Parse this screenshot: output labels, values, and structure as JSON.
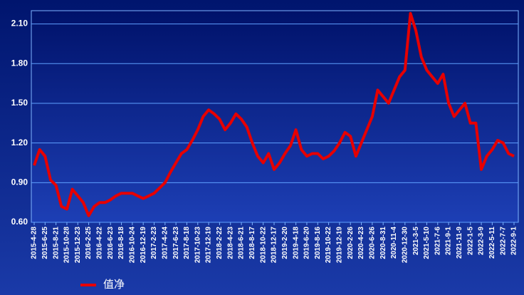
{
  "chart_data": {
    "type": "line",
    "categories": [
      "2015-4-28",
      null,
      "2015-6-25",
      null,
      "2015-8-21",
      null,
      "2015-10-28",
      null,
      "2015-12-23",
      null,
      "2016-2-25",
      null,
      "2016-4-22",
      null,
      "2016-6-23",
      null,
      "2016-8-18",
      null,
      "2016-10-24",
      null,
      "2016-12-19",
      null,
      "2017-2-23",
      null,
      "2017-4-24",
      null,
      "2017-6-23",
      null,
      "2017-8-18",
      null,
      "2017-10-23",
      null,
      "2017-12-19",
      null,
      "2018-2-22",
      null,
      "2018-4-23",
      null,
      "2018-6-21",
      null,
      "2018-8-17",
      null,
      "2018-10-22",
      null,
      "2018-12-17",
      null,
      "2019-2-20",
      null,
      "2019-4-18",
      null,
      "2019-6-20",
      null,
      "2019-8-16",
      null,
      "2019-10-22",
      null,
      "2019-12-19",
      null,
      "2020-2-26",
      null,
      "2020-4-23",
      null,
      "2020-6-26",
      null,
      "2020-8-31",
      null,
      "2020-11-4",
      null,
      "2020-12-30",
      null,
      "2021-3-5",
      null,
      "2021-5-10",
      null,
      "2021-7-6",
      null,
      "2021-9-1",
      null,
      "2021-11-9",
      null,
      "2022-1-5",
      null,
      "2022-3-9",
      null,
      "2022-5-11",
      null,
      "2022-7-7",
      null,
      "2022-9-1"
    ],
    "series": [
      {
        "name": "值净",
        "color": "#e60000",
        "values": [
          1.03,
          1.15,
          1.1,
          0.92,
          0.88,
          0.72,
          0.7,
          0.85,
          0.8,
          0.75,
          0.65,
          0.72,
          0.75,
          0.75,
          0.77,
          0.8,
          0.82,
          0.82,
          0.82,
          0.8,
          0.78,
          0.8,
          0.82,
          0.86,
          0.9,
          0.98,
          1.05,
          1.12,
          1.15,
          1.22,
          1.3,
          1.4,
          1.45,
          1.42,
          1.38,
          1.3,
          1.35,
          1.42,
          1.38,
          1.32,
          1.2,
          1.1,
          1.05,
          1.12,
          1.0,
          1.05,
          1.12,
          1.18,
          1.3,
          1.15,
          1.1,
          1.12,
          1.12,
          1.08,
          1.1,
          1.14,
          1.2,
          1.28,
          1.25,
          1.1,
          1.2,
          1.3,
          1.4,
          1.6,
          1.55,
          1.5,
          1.6,
          1.7,
          1.75,
          2.18,
          2.05,
          1.85,
          1.75,
          1.7,
          1.65,
          1.72,
          1.5,
          1.4,
          1.45,
          1.5,
          1.35,
          1.35,
          1.0,
          1.1,
          1.15,
          1.22,
          1.2,
          1.12,
          1.1
        ]
      }
    ],
    "ylim": [
      0.6,
      2.2
    ],
    "yticks": [
      {
        "value": 0.6,
        "label": "0.60"
      },
      {
        "value": 0.9,
        "label": "0.90"
      },
      {
        "value": 1.2,
        "label": "1.20"
      },
      {
        "value": 1.5,
        "label": "1.50"
      },
      {
        "value": 1.8,
        "label": "1.80"
      },
      {
        "value": 2.1,
        "label": "2.10"
      }
    ],
    "grid": true,
    "legend": "bottom"
  }
}
